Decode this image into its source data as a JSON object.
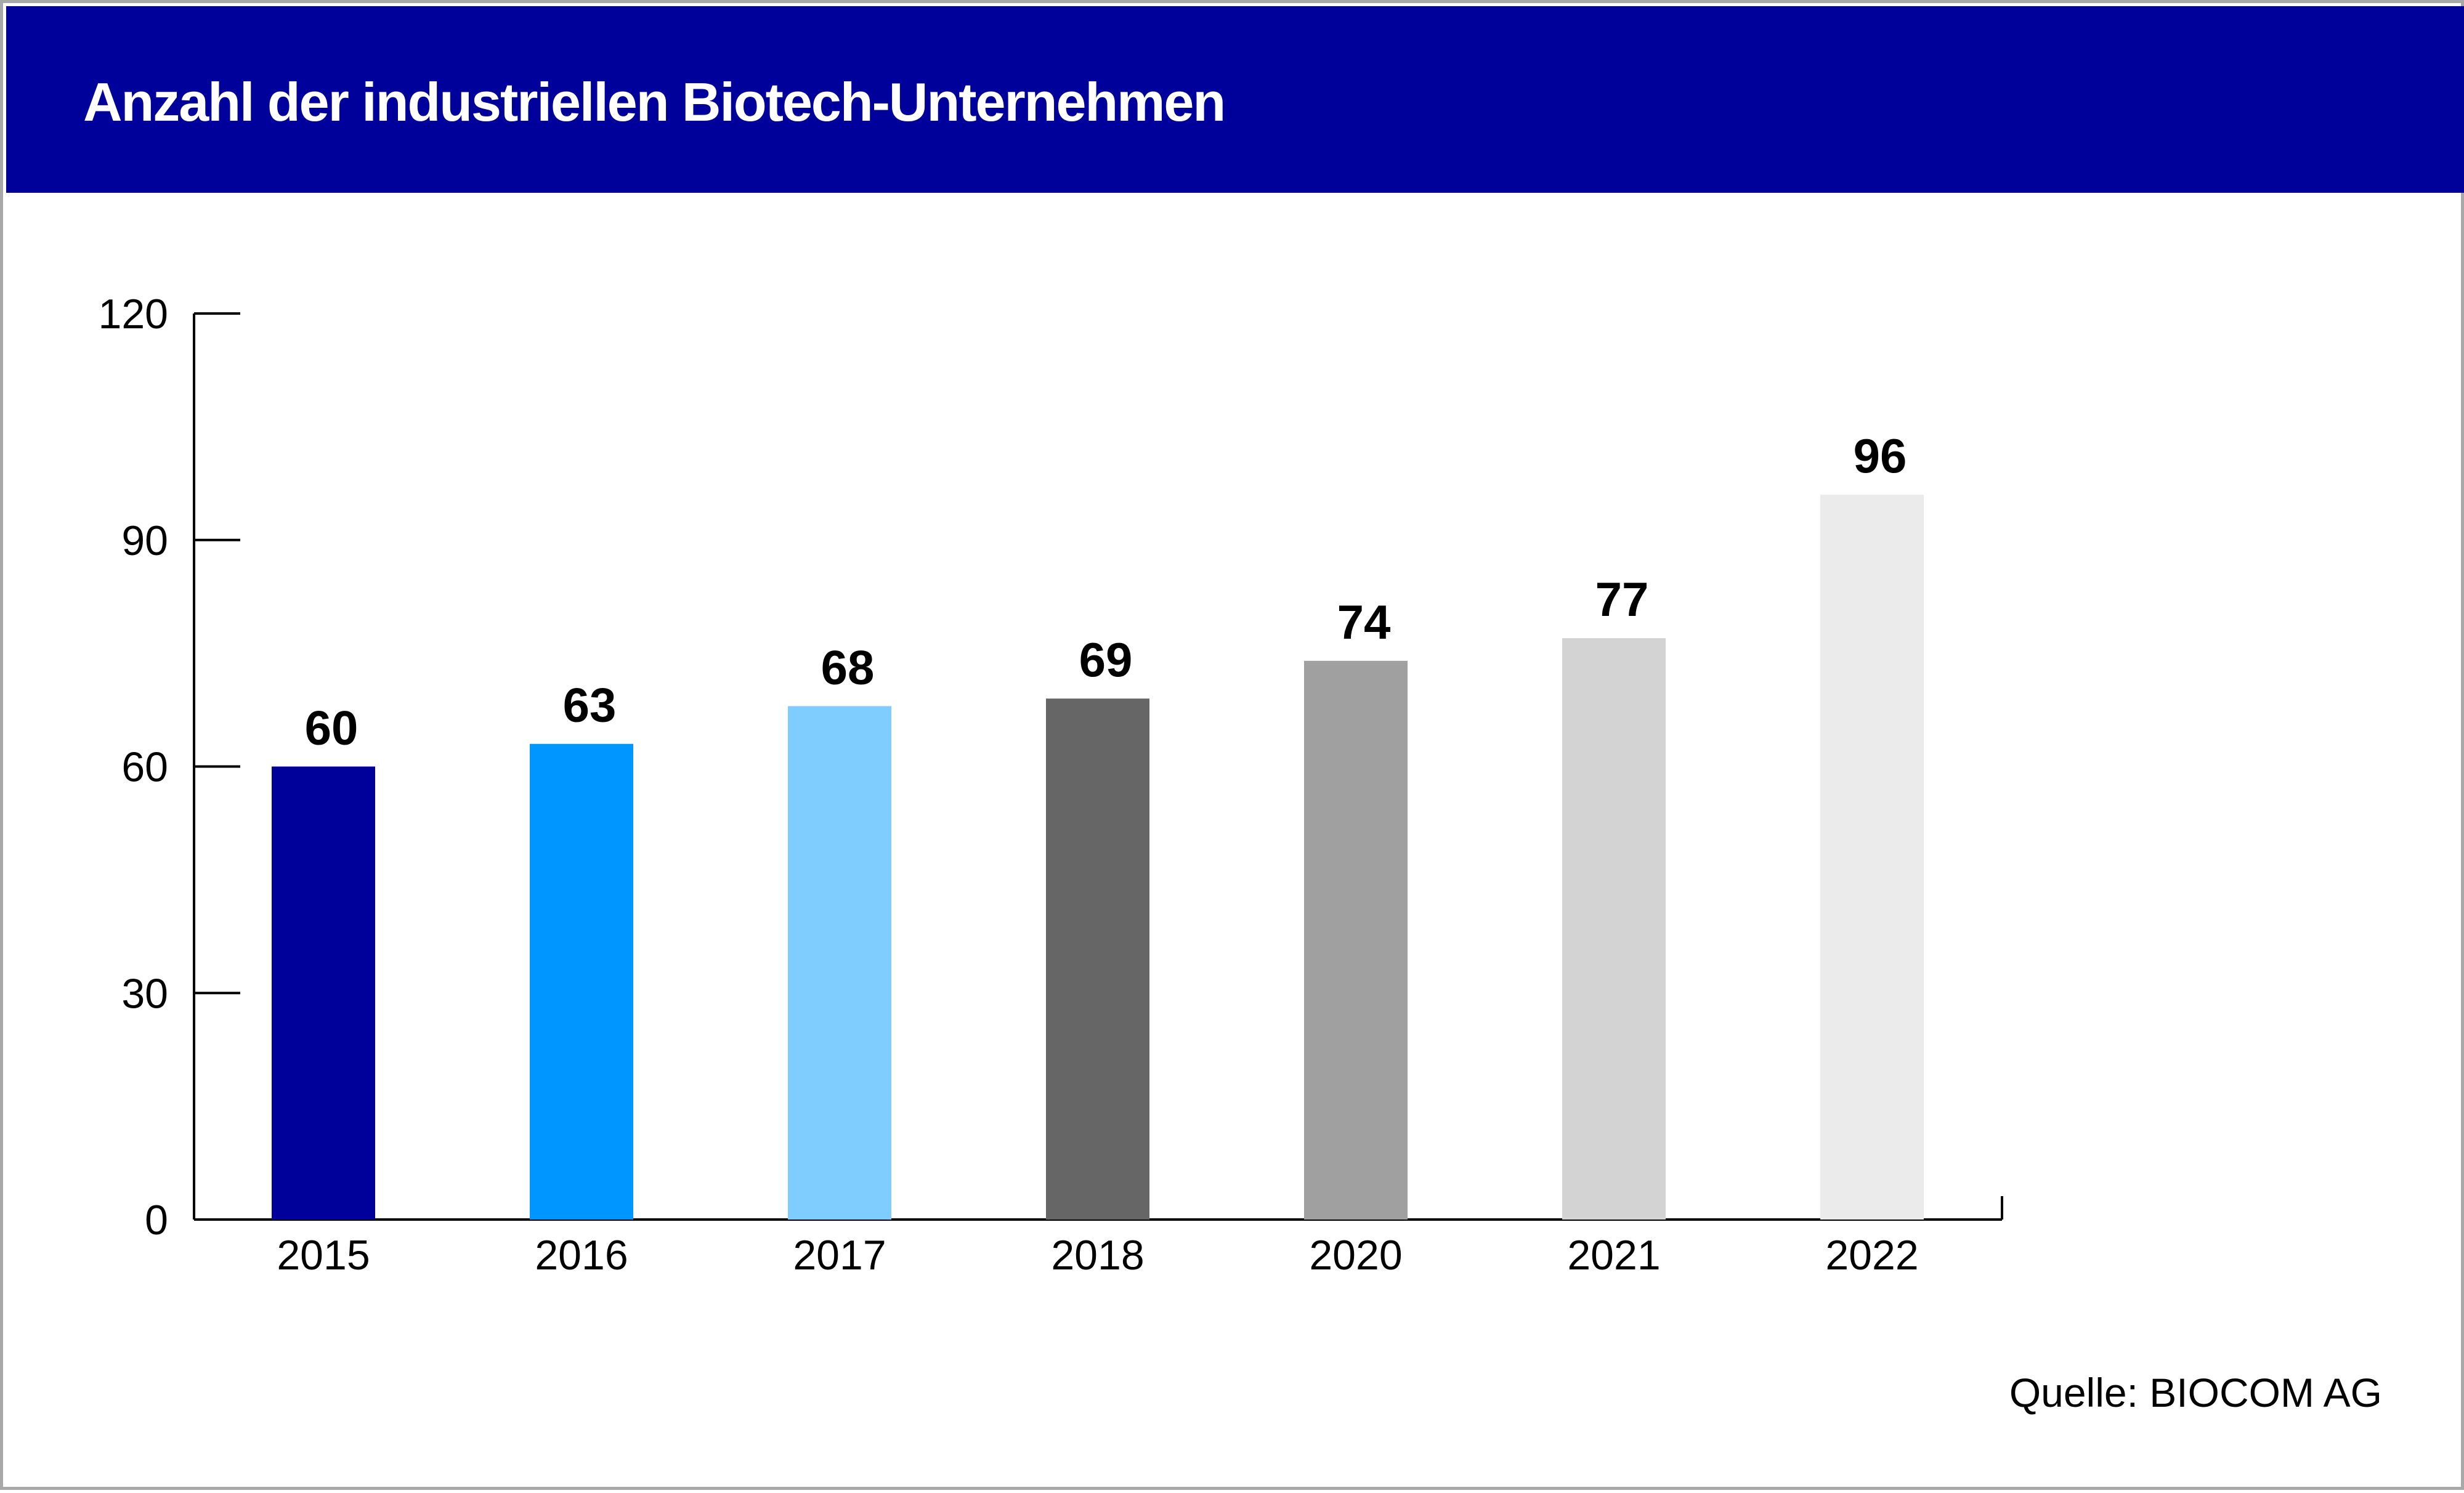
{
  "title": "Anzahl der industriellen Biotech-Unternehmen",
  "source": "Quelle: BIOCOM AG",
  "colors": {
    "header_bg": "#00009b",
    "bars": [
      "#00009b",
      "#0096ff",
      "#7fcdff",
      "#666666",
      "#a0a0a0",
      "#d3d3d3",
      "#ebebeb"
    ]
  },
  "chart_data": {
    "type": "bar",
    "title": "Anzahl der industriellen Biotech-Unternehmen",
    "xlabel": "",
    "ylabel": "",
    "categories": [
      "2015",
      "2016",
      "2017",
      "2018",
      "2020",
      "2021",
      "2022"
    ],
    "values": [
      60,
      63,
      68,
      69,
      74,
      77,
      96
    ],
    "ylim": [
      0,
      120
    ],
    "yticks": [
      0,
      30,
      60,
      90,
      120
    ],
    "grid": false,
    "legend": "none",
    "data_labels": true
  }
}
